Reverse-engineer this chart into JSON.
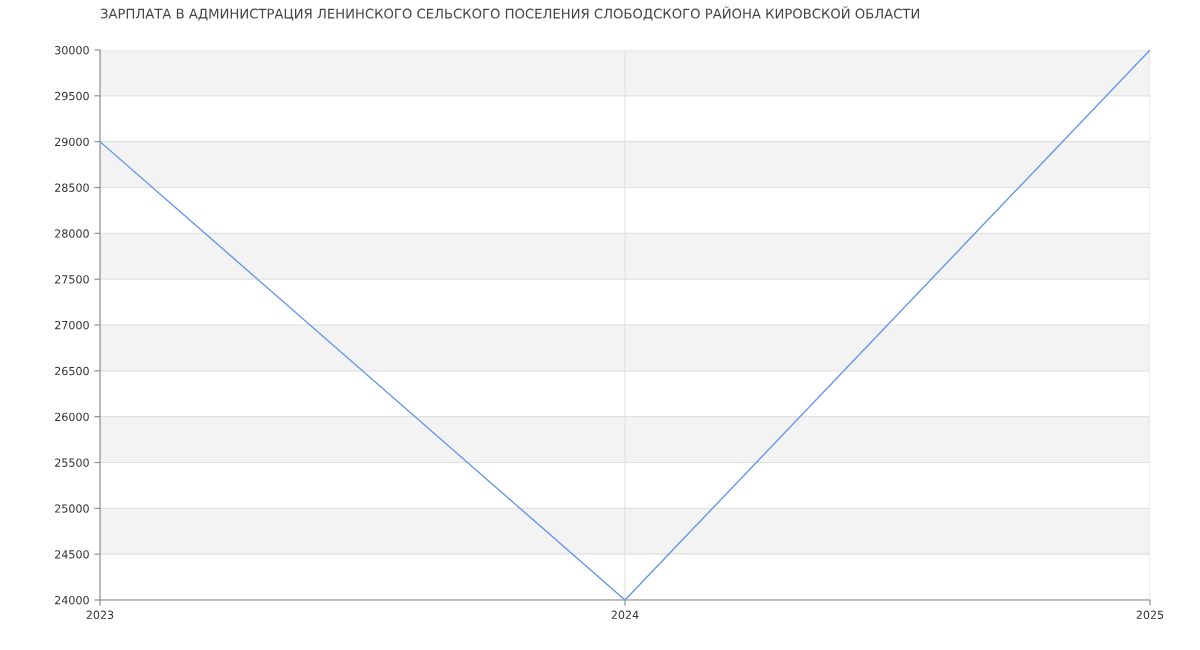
{
  "chart_data": {
    "type": "line",
    "title": "ЗАРПЛАТА В АДМИНИСТРАЦИЯ ЛЕНИНСКОГО СЕЛЬСКОГО ПОСЕЛЕНИЯ СЛОБОДСКОГО РАЙОНА КИРОВСКОЙ ОБЛАСТИ",
    "x": [
      2023,
      2024,
      2025
    ],
    "series": [
      {
        "color": "#6495ed",
        "values": [
          29000,
          24000,
          30000
        ]
      }
    ],
    "xlim": [
      2023,
      2025
    ],
    "xticks": [
      2023,
      2024,
      2025
    ],
    "ylim": [
      24000,
      30000
    ],
    "yticks": [
      24000,
      24500,
      25000,
      25500,
      26000,
      26500,
      27000,
      27500,
      28000,
      28500,
      29000,
      29500,
      30000
    ],
    "grid": true,
    "legend": false,
    "marker": "none",
    "line_style": "solid"
  }
}
